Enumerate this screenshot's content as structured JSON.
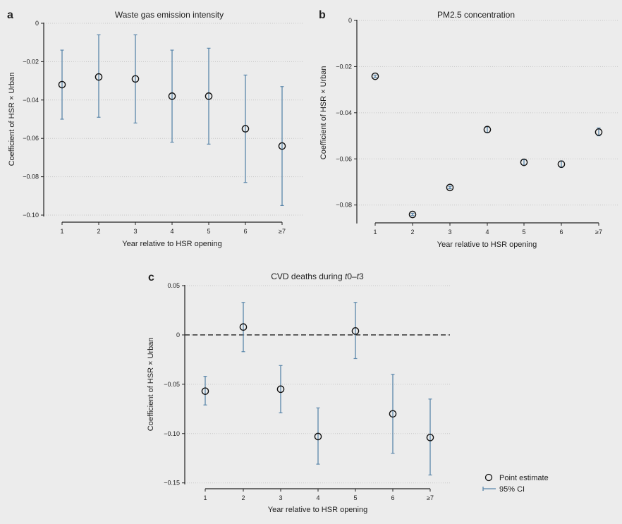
{
  "colors": {
    "background": "#ececec",
    "ci": "#5a86aa",
    "point": "#111111",
    "grid": "#c8c8c8"
  },
  "legend": {
    "point_label": "Point estimate",
    "ci_label": "95% CI",
    "placement": "bottom-right"
  },
  "chart_data": [
    {
      "panel": "a",
      "type": "scatter",
      "title": "Waste gas emission intensity",
      "xlabel": "Year relative to HSR opening",
      "ylabel": "Coefficient of HSR × Urban",
      "categories": [
        "1",
        "2",
        "3",
        "4",
        "5",
        "6",
        "≥7"
      ],
      "ylim": [
        -0.1,
        0
      ],
      "yticks": [
        0,
        -0.02,
        -0.04,
        -0.06,
        -0.08,
        -0.1
      ],
      "ytick_labels": [
        "0",
        "−0.02",
        "−0.04",
        "−0.06",
        "−0.08",
        "−0.10"
      ],
      "grid": "horizontal dotted",
      "estimate": [
        -0.032,
        -0.028,
        -0.029,
        -0.038,
        -0.038,
        -0.055,
        -0.064
      ],
      "ci_low": [
        -0.05,
        -0.049,
        -0.052,
        -0.062,
        -0.063,
        -0.083,
        -0.095
      ],
      "ci_high": [
        -0.014,
        -0.006,
        -0.006,
        -0.014,
        -0.013,
        -0.027,
        -0.033
      ]
    },
    {
      "panel": "b",
      "type": "scatter",
      "title": "PM2.5 concentration",
      "xlabel": "Year relative to HSR opening",
      "ylabel": "Coefficient of HSR × Urban",
      "categories": [
        "1",
        "2",
        "3",
        "4",
        "5",
        "6",
        "≥7"
      ],
      "ylim": [
        -0.088,
        0
      ],
      "yticks": [
        0,
        -0.02,
        -0.04,
        -0.06,
        -0.08
      ],
      "ytick_labels": [
        "0",
        "−0.02",
        "−0.04",
        "−0.06",
        "−0.08"
      ],
      "grid": "horizontal dotted",
      "estimate": [
        -0.0242,
        -0.0841,
        -0.0724,
        -0.0473,
        -0.0615,
        -0.0623,
        -0.0484
      ],
      "ci_low": [
        -0.0247,
        -0.0846,
        -0.0729,
        -0.0485,
        -0.0627,
        -0.0637,
        -0.05
      ],
      "ci_high": [
        -0.0237,
        -0.0836,
        -0.0719,
        -0.0461,
        -0.0603,
        -0.0609,
        -0.0466
      ]
    },
    {
      "panel": "c",
      "type": "scatter",
      "title_parts": [
        "CVD deaths during ",
        "t",
        "0–",
        "t",
        "3"
      ],
      "xlabel": "Year relative to HSR opening",
      "ylabel": "Coefficient of HSR × Urban",
      "categories": [
        "1",
        "2",
        "3",
        "4",
        "5",
        "6",
        "≥7"
      ],
      "ylim": [
        -0.15,
        0.05
      ],
      "yticks": [
        0.05,
        0,
        -0.05,
        -0.1,
        -0.15
      ],
      "ytick_labels": [
        "0.05",
        "0",
        "−0.05",
        "−0.10",
        "−0.15"
      ],
      "grid": "horizontal dotted",
      "reference_line": 0,
      "estimate": [
        -0.057,
        0.008,
        -0.055,
        -0.103,
        0.004,
        -0.08,
        -0.104
      ],
      "ci_low": [
        -0.071,
        -0.017,
        -0.079,
        -0.131,
        -0.024,
        -0.12,
        -0.142
      ],
      "ci_high": [
        -0.042,
        0.033,
        -0.031,
        -0.074,
        0.033,
        -0.04,
        -0.065
      ]
    }
  ]
}
